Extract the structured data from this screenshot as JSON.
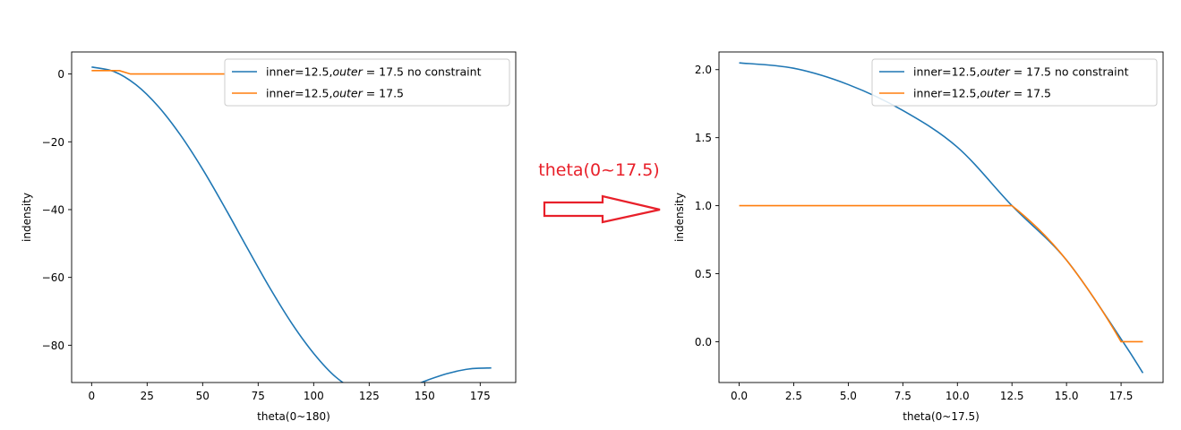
{
  "colors": {
    "series_blue": "#1f77b4",
    "series_orange": "#ff7f0e",
    "annotation_red": "#e8202a"
  },
  "annotation": {
    "text": "theta(0~17.5)",
    "icon": "right-arrow-icon"
  },
  "chart_data": [
    {
      "type": "line",
      "xlabel": "theta(0~180)",
      "ylabel": "indensity",
      "xlim": [
        -9,
        191
      ],
      "ylim": [
        -91.0,
        6.5
      ],
      "xticks": [
        0,
        25,
        50,
        75,
        100,
        125,
        150,
        175
      ],
      "yticks": [
        0,
        -20,
        -40,
        -60,
        -80
      ],
      "ytick_labels": [
        "0",
        "−20",
        "−40",
        "−60",
        "−80"
      ],
      "legend": "upper-right",
      "series": [
        {
          "name": "inner=12.5,",
          "name_math": "outer",
          "name_tail": " = 17.5 no constraint",
          "x": [
            0,
            10,
            20,
            30,
            40,
            50,
            60,
            70,
            80,
            90,
            100,
            110,
            120,
            130,
            140,
            150,
            160,
            170,
            180
          ],
          "y": [
            2.05,
            0.74,
            -3.19,
            -9.56,
            -18.0,
            -28.1,
            -39.4,
            -51.2,
            -62.8,
            -73.4,
            -82.4,
            -89.4,
            -93.5,
            -94.6,
            -93.2,
            -90.6,
            -88.4,
            -87.0,
            -86.7
          ]
        },
        {
          "name": "inner=12.5,",
          "name_math": "outer",
          "name_tail": " = 17.5",
          "x": [
            0,
            12.5,
            17.5,
            60
          ],
          "y": [
            1,
            1,
            0,
            0
          ]
        }
      ]
    },
    {
      "type": "line",
      "xlabel": "theta(0~17.5)",
      "ylabel": "indensity",
      "xlim": [
        -0.925,
        19.425
      ],
      "ylim": [
        -0.3,
        2.13
      ],
      "xticks": [
        0.0,
        2.5,
        5.0,
        7.5,
        10.0,
        12.5,
        15.0,
        17.5
      ],
      "xtick_labels": [
        "0.0",
        "2.5",
        "5.0",
        "7.5",
        "10.0",
        "12.5",
        "15.0",
        "17.5"
      ],
      "yticks": [
        0.0,
        0.5,
        1.0,
        1.5,
        2.0
      ],
      "ytick_labels": [
        "0.0",
        "0.5",
        "1.0",
        "1.5",
        "2.0"
      ],
      "legend": "upper-right",
      "series": [
        {
          "name": "inner=12.5,",
          "name_math": "outer",
          "name_tail": " = 17.5 no constraint",
          "x": [
            0,
            2.5,
            5,
            7.5,
            10,
            12.5,
            15,
            17.5,
            18.5
          ],
          "y": [
            2.05,
            2.01,
            1.89,
            1.7,
            1.43,
            1.0,
            0.6,
            0.02,
            -0.23
          ]
        },
        {
          "name": "inner=12.5,",
          "name_math": "outer",
          "name_tail": " = 17.5",
          "x": [
            0,
            12.5,
            15,
            17.5,
            18.5
          ],
          "y": [
            1,
            1,
            0.6,
            0.0,
            0.0
          ]
        }
      ]
    }
  ]
}
